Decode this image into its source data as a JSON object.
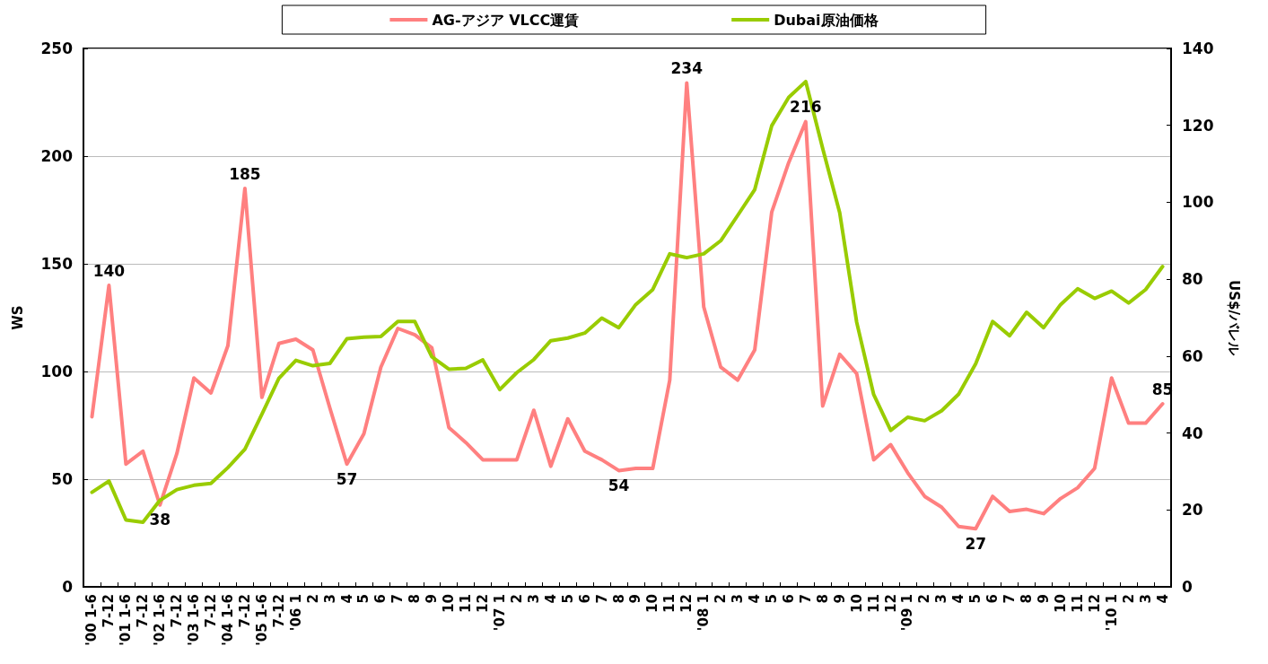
{
  "chart_data": {
    "type": "line",
    "ylabel": "WS",
    "y2label": "US$/バレル",
    "categories": [
      "'00 1-6",
      "7-12",
      "'01 1-6",
      "7-12",
      "'02 1-6",
      "7-12",
      "'03 1-6",
      "7-12",
      "'04 1-6",
      "7-12",
      "'05 1-6",
      "7-12",
      "'06 1",
      "2",
      "3",
      "4",
      "5",
      "6",
      "7",
      "8",
      "9",
      "10",
      "11",
      "12",
      "'07 1",
      "2",
      "3",
      "4",
      "5",
      "6",
      "7",
      "8",
      "9",
      "10",
      "11",
      "12",
      "'08 1",
      "2",
      "3",
      "4",
      "5",
      "6",
      "7",
      "8",
      "9",
      "10",
      "11",
      "12",
      "'09 1",
      "2",
      "3",
      "4",
      "5",
      "6",
      "7",
      "8",
      "9",
      "10",
      "11",
      "12",
      "'10 1",
      "2",
      "3",
      "4"
    ],
    "series": [
      {
        "name": "AG-アジア VLCC運賃",
        "color": "#ff8080",
        "values": [
          79,
          140,
          57,
          63,
          38,
          62,
          97,
          90,
          112,
          185,
          88,
          113,
          115,
          110,
          83,
          57,
          71,
          102,
          120,
          117,
          111,
          74,
          67,
          59,
          59,
          59,
          82,
          56,
          78,
          63,
          59,
          54,
          55,
          55,
          96,
          234,
          130,
          102,
          96,
          110,
          174,
          197,
          216,
          84,
          108,
          99,
          59,
          66,
          53,
          42,
          37,
          28,
          27,
          42,
          35,
          36,
          34,
          41,
          46,
          55,
          97,
          76,
          76,
          85
        ],
        "value_labels": [
          null,
          "140",
          null,
          null,
          "38",
          null,
          null,
          null,
          null,
          "185",
          null,
          null,
          null,
          null,
          null,
          "57",
          null,
          null,
          null,
          null,
          null,
          null,
          null,
          null,
          null,
          null,
          null,
          null,
          null,
          null,
          null,
          "54",
          null,
          null,
          null,
          "234",
          null,
          null,
          null,
          null,
          null,
          null,
          "216",
          null,
          null,
          null,
          null,
          null,
          null,
          null,
          null,
          null,
          "27",
          null,
          null,
          null,
          null,
          null,
          null,
          null,
          null,
          null,
          null,
          "85"
        ]
      },
      {
        "name": "Dubai原油価格",
        "color": "#99cc00",
        "axis": "y2",
        "values": [
          24.6,
          27.5,
          17.4,
          16.8,
          22.5,
          25.3,
          26.4,
          26.9,
          31,
          35.8,
          44.9,
          54.2,
          58.9,
          57.5,
          58.1,
          64.5,
          64.9,
          65.1,
          69,
          69,
          59.8,
          56.6,
          56.8,
          59,
          51.3,
          55.7,
          59.1,
          64,
          64.7,
          66,
          69.9,
          67.4,
          73.4,
          77.3,
          86.6,
          85.6,
          86.6,
          90,
          96.6,
          103.3,
          119.9,
          127.3,
          131.4,
          114,
          97.3,
          68.8,
          50,
          40.7,
          44.1,
          43.2,
          45.8,
          50.1,
          58,
          69,
          65.3,
          71.4,
          67.4,
          73.4,
          77.5,
          75,
          76.9,
          73.8,
          77.3,
          83.3
        ]
      }
    ],
    "ylim": [
      0,
      250
    ],
    "yticks": [
      0,
      50,
      100,
      150,
      200,
      250
    ],
    "y2lim": [
      0,
      140
    ],
    "y2ticks": [
      0,
      20,
      40,
      60,
      80,
      100,
      120,
      140
    ],
    "grid": "y",
    "legend": "top",
    "marker": "none",
    "line_style": "solid"
  }
}
